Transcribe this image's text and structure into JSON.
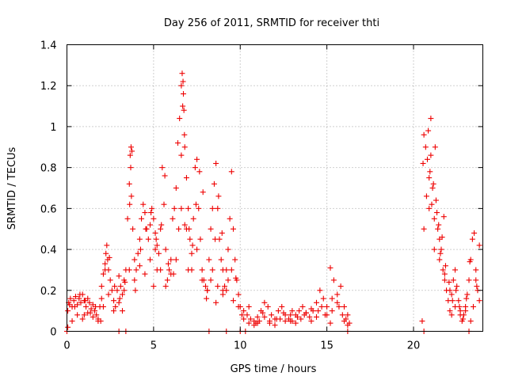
{
  "chart_data": {
    "type": "scatter",
    "title": "Day 256 of 2011, SRMTID for receiver thti",
    "xlabel": "GPS time / hours",
    "ylabel": "SRMTID / TECUs",
    "xlim": [
      0,
      24
    ],
    "ylim": [
      0,
      1.4
    ],
    "xticks": [
      0,
      5,
      10,
      15,
      20
    ],
    "yticks": [
      0,
      0.2,
      0.4,
      0.6,
      0.8,
      1,
      1.2,
      1.4
    ],
    "ytick_labels": [
      "0",
      "0.2",
      "0.4",
      "0.6",
      "0.8",
      "1",
      "1.2",
      "1.4"
    ],
    "grid": true,
    "marker": "+",
    "color": "#ee0000",
    "series": [
      {
        "name": "SRMTID",
        "x": [
          0.05,
          0.1,
          0.2,
          0.3,
          0.4,
          0.5,
          0.6,
          0.7,
          0.8,
          0.9,
          1.0,
          1.1,
          1.2,
          1.3,
          1.4,
          1.5,
          1.6,
          1.7,
          1.8,
          1.9,
          2.0,
          2.1,
          2.2,
          2.25,
          2.3,
          2.35,
          2.4,
          2.5,
          2.6,
          2.7,
          2.8,
          2.9,
          3.0,
          3.1,
          3.2,
          3.3,
          3.4,
          3.5,
          3.6,
          3.65,
          3.7,
          3.75,
          3.8,
          3.9,
          4.0,
          4.1,
          4.2,
          4.3,
          4.4,
          4.5,
          4.6,
          4.7,
          4.8,
          4.9,
          5.0,
          5.1,
          5.2,
          5.3,
          5.4,
          5.5,
          5.6,
          5.7,
          5.8,
          5.9,
          6.0,
          6.1,
          6.2,
          6.3,
          6.4,
          6.5,
          6.6,
          6.65,
          6.7,
          6.75,
          6.8,
          6.9,
          7.0,
          7.1,
          7.2,
          7.3,
          7.4,
          7.5,
          7.6,
          7.7,
          7.8,
          7.9,
          8.0,
          8.1,
          8.2,
          8.3,
          8.4,
          8.5,
          8.6,
          8.7,
          8.8,
          8.9,
          9.0,
          9.1,
          9.2,
          9.3,
          9.4,
          9.5,
          9.6,
          9.7,
          9.8,
          9.9,
          10.0,
          10.2,
          10.4,
          10.6,
          10.8,
          11.0,
          11.2,
          11.4,
          11.6,
          11.8,
          12.0,
          12.2,
          12.4,
          12.6,
          12.8,
          13.0,
          13.2,
          13.4,
          13.6,
          13.8,
          14.0,
          14.2,
          14.4,
          14.6,
          14.8,
          15.0,
          15.2,
          15.4,
          15.6,
          15.8,
          16.0,
          16.2,
          16.3,
          20.5,
          20.6,
          20.7,
          20.8,
          20.9,
          21.0,
          21.1,
          21.2,
          21.3,
          21.4,
          21.5,
          21.6,
          21.7,
          21.8,
          21.9,
          22.0,
          22.1,
          22.2,
          22.3,
          22.4,
          22.5,
          22.6,
          22.7,
          22.8,
          22.9,
          23.0,
          23.1,
          23.2,
          23.3,
          23.4,
          23.5,
          23.6,
          23.7,
          23.8,
          0.05,
          0.3,
          0.6,
          0.9,
          1.2,
          1.5,
          1.8,
          2.1,
          2.4,
          2.7,
          3.0,
          3.3,
          3.6,
          3.9,
          4.2,
          4.5,
          4.8,
          5.1,
          5.4,
          5.7,
          6.0,
          6.3,
          6.6,
          6.9,
          7.2,
          7.5,
          7.8,
          8.1,
          8.4,
          8.7,
          9.0,
          9.3,
          9.6,
          9.9,
          10.2,
          10.5,
          10.8,
          11.1,
          11.4,
          11.7,
          12.0,
          12.3,
          12.6,
          12.9,
          13.2,
          13.5,
          13.8,
          14.1,
          14.4,
          14.7,
          15.0,
          15.3,
          15.6,
          15.9,
          16.2,
          20.6,
          20.9,
          21.2,
          21.5,
          21.8,
          22.1,
          22.4,
          22.7,
          23.0,
          23.3,
          23.6,
          0.15,
          0.45,
          0.75,
          1.05,
          1.35,
          1.65,
          1.95,
          2.2,
          2.45,
          2.75,
          3.05,
          3.35,
          3.62,
          3.68,
          3.72,
          3.95,
          4.25,
          4.55,
          4.85,
          5.15,
          5.45,
          5.65,
          5.85,
          6.15,
          6.45,
          6.6,
          6.68,
          6.72,
          6.78,
          7.05,
          7.25,
          7.45,
          7.65,
          7.85,
          8.05,
          8.3,
          8.55,
          8.75,
          8.95,
          9.2,
          9.5,
          9.75,
          10.1,
          10.5,
          10.9,
          11.3,
          11.7,
          12.1,
          12.5,
          12.9,
          13.3,
          13.7,
          14.1,
          14.5,
          14.9,
          15.3,
          15.7,
          16.1,
          20.55,
          20.75,
          20.85,
          20.95,
          21.05,
          21.15,
          21.25,
          21.35,
          21.45,
          21.55,
          21.65,
          21.75,
          21.85,
          22.05,
          22.25,
          22.45,
          22.65,
          22.85,
          23.05,
          23.25,
          23.45,
          23.65,
          0.0,
          3.0,
          3.4,
          8.2,
          9.2,
          10.0,
          10.3,
          16.2,
          20.6,
          23.2,
          1.0,
          2.0,
          3.2,
          5.0,
          5.2,
          6.8,
          7.0,
          8.6,
          9.0,
          11.0,
          13.0,
          15.2,
          16.0,
          21.0,
          22.2,
          23.8
        ],
        "y": [
          0.1,
          0.14,
          0.16,
          0.12,
          0.15,
          0.17,
          0.13,
          0.16,
          0.14,
          0.18,
          0.15,
          0.12,
          0.16,
          0.14,
          0.11,
          0.13,
          0.1,
          0.08,
          0.06,
          0.12,
          0.22,
          0.28,
          0.33,
          0.38,
          0.42,
          0.35,
          0.3,
          0.25,
          0.2,
          0.15,
          0.12,
          0.2,
          0.27,
          0.22,
          0.18,
          0.25,
          0.3,
          0.55,
          0.72,
          0.86,
          0.9,
          0.88,
          0.5,
          0.35,
          0.3,
          0.38,
          0.45,
          0.55,
          0.62,
          0.58,
          0.5,
          0.45,
          0.52,
          0.6,
          0.55,
          0.48,
          0.42,
          0.38,
          0.5,
          0.8,
          0.62,
          0.4,
          0.25,
          0.3,
          0.35,
          0.55,
          0.6,
          0.7,
          0.92,
          1.04,
          1.2,
          1.26,
          1.22,
          1.08,
          0.9,
          0.75,
          0.6,
          0.45,
          0.38,
          0.55,
          0.8,
          0.84,
          0.6,
          0.45,
          0.3,
          0.25,
          0.22,
          0.2,
          0.35,
          0.5,
          0.6,
          0.72,
          0.82,
          0.6,
          0.45,
          0.35,
          0.3,
          0.22,
          0.3,
          0.4,
          0.55,
          0.78,
          0.5,
          0.35,
          0.25,
          0.18,
          0.12,
          0.1,
          0.08,
          0.06,
          0.05,
          0.07,
          0.1,
          0.14,
          0.12,
          0.08,
          0.06,
          0.1,
          0.12,
          0.08,
          0.06,
          0.05,
          0.08,
          0.1,
          0.12,
          0.09,
          0.07,
          0.1,
          0.14,
          0.2,
          0.16,
          0.12,
          0.31,
          0.25,
          0.18,
          0.22,
          0.12,
          0.08,
          0.04,
          0.05,
          0.96,
          0.9,
          0.84,
          0.75,
          1.04,
          0.7,
          0.55,
          0.64,
          0.5,
          0.45,
          0.4,
          0.3,
          0.25,
          0.2,
          0.15,
          0.1,
          0.18,
          0.25,
          0.3,
          0.22,
          0.15,
          0.1,
          0.05,
          0.08,
          0.12,
          0.18,
          0.25,
          0.35,
          0.45,
          0.48,
          0.3,
          0.2,
          0.15,
          0.02,
          0.05,
          0.08,
          0.06,
          0.09,
          0.07,
          0.05,
          0.12,
          0.18,
          0.1,
          0.14,
          0.2,
          0.3,
          0.25,
          0.32,
          0.28,
          0.35,
          0.4,
          0.3,
          0.22,
          0.28,
          0.35,
          0.6,
          0.5,
          0.3,
          0.4,
          0.25,
          0.2,
          0.3,
          0.22,
          0.18,
          0.25,
          0.15,
          0.12,
          0.06,
          0.04,
          0.03,
          0.05,
          0.07,
          0.04,
          0.03,
          0.06,
          0.05,
          0.08,
          0.04,
          0.06,
          0.09,
          0.05,
          0.07,
          0.12,
          0.08,
          0.1,
          0.14,
          0.08,
          0.03,
          0.5,
          0.6,
          0.4,
          0.35,
          0.28,
          0.2,
          0.12,
          0.08,
          0.1,
          0.05,
          0.25,
          0.13,
          0.12,
          0.18,
          0.15,
          0.09,
          0.12,
          0.05,
          0.3,
          0.36,
          0.22,
          0.16,
          0.24,
          0.62,
          0.8,
          0.66,
          0.2,
          0.4,
          0.5,
          0.58,
          0.45,
          0.52,
          0.76,
          0.33,
          0.28,
          0.5,
          0.86,
          1.1,
          1.16,
          0.96,
          0.5,
          0.42,
          0.62,
          0.78,
          0.68,
          0.16,
          0.25,
          0.45,
          0.66,
          0.48,
          0.2,
          0.3,
          0.26,
          0.08,
          0.12,
          0.04,
          0.09,
          0.05,
          0.06,
          0.09,
          0.05,
          0.07,
          0.08,
          0.11,
          0.1,
          0.08,
          0.16,
          0.12,
          0.06,
          0.82,
          0.66,
          0.98,
          0.78,
          0.62,
          0.72,
          0.9,
          0.58,
          0.52,
          0.38,
          0.46,
          0.56,
          0.32,
          0.24,
          0.15,
          0.2,
          0.12,
          0.06,
          0.16,
          0.34,
          0.12,
          0.22,
          0,
          0,
          0,
          0,
          0,
          0,
          0,
          0,
          0,
          0,
          0.08,
          0.16,
          0.1,
          0.22,
          0.3,
          0.52,
          0.3,
          0.14,
          0.2,
          0.04,
          0.1,
          0.04,
          0.05,
          0.86,
          0.08,
          0.42
        ]
      }
    ]
  }
}
